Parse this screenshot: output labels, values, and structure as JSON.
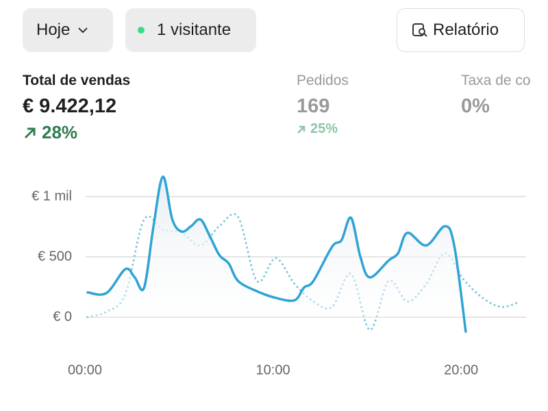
{
  "filters": {
    "period": "Hoje",
    "visitors": "1 visitante",
    "report": "Relatório"
  },
  "metrics": [
    {
      "label": "Total de vendas",
      "value": "€ 9.422,12",
      "change": "28%"
    },
    {
      "label": "Pedidos",
      "value": "169",
      "change": "25%"
    },
    {
      "label": "Taxa de co",
      "value": "0%"
    }
  ],
  "chart_data": {
    "type": "line",
    "xlim": [
      0,
      23.2
    ],
    "xticks": [
      {
        "value": 0,
        "label": "00:00"
      },
      {
        "value": 10,
        "label": "10:00"
      },
      {
        "value": 20,
        "label": "20:00"
      }
    ],
    "ylim": [
      -150,
      1200
    ],
    "yticks": [
      {
        "value": 0,
        "label": "€ 0"
      },
      {
        "value": 500,
        "label": "€ 500"
      },
      {
        "value": 1000,
        "label": "€ 1 mil"
      }
    ],
    "grid": true,
    "series": [
      {
        "color": "#2ea3d5",
        "style": "solid",
        "x": [
          0,
          1,
          2,
          2.5,
          3,
          3.5,
          4,
          4.5,
          5,
          5.5,
          6,
          6.5,
          7,
          7.5,
          8,
          9,
          10,
          11,
          11.5,
          12,
          13,
          13.5,
          14,
          14.5,
          15,
          16,
          16.5,
          17,
          18,
          19,
          19.5,
          20.1
        ],
        "values": [
          205,
          200,
          398,
          330,
          245,
          755,
          1165,
          810,
          710,
          755,
          810,
          670,
          515,
          445,
          300,
          215,
          160,
          140,
          245,
          300,
          585,
          640,
          825,
          500,
          330,
          470,
          530,
          700,
          595,
          755,
          585,
          -120
        ]
      },
      {
        "color": "#7cc7dc",
        "style": "dotted",
        "x": [
          0,
          1,
          2,
          3,
          4,
          5,
          6,
          7,
          8,
          9,
          10,
          11,
          12,
          13,
          14,
          15,
          16,
          17,
          18,
          19,
          20,
          21,
          22,
          23
        ],
        "values": [
          0,
          45,
          190,
          810,
          725,
          700,
          595,
          755,
          830,
          300,
          490,
          275,
          130,
          85,
          360,
          -105,
          300,
          130,
          275,
          530,
          310,
          160,
          85,
          130
        ]
      }
    ]
  }
}
